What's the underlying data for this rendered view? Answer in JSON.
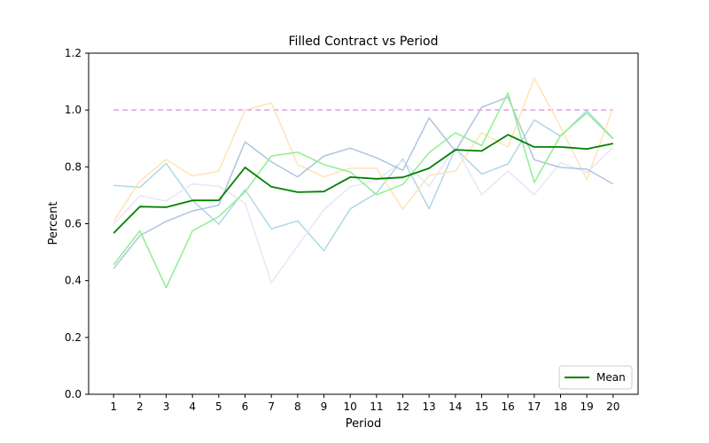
{
  "chart_data": {
    "type": "line",
    "title": "Filled Contract vs Period",
    "xlabel": "Period",
    "ylabel": "Percent",
    "x": [
      1,
      2,
      3,
      4,
      5,
      6,
      7,
      8,
      9,
      10,
      11,
      12,
      13,
      14,
      15,
      16,
      17,
      18,
      19,
      20
    ],
    "ylim": [
      0,
      1.2
    ],
    "yticks": [
      0.0,
      0.2,
      0.4,
      0.6,
      0.8,
      1.0,
      1.2
    ],
    "ytick_labels": [
      "0.0",
      "0.2",
      "0.4",
      "0.6",
      "0.8",
      "1.0",
      "1.2"
    ],
    "grid": false,
    "legend_position": "bottom-right",
    "reference_line": {
      "y": 1.0,
      "color": "#dda0dd",
      "style": "dashed"
    },
    "series": [
      {
        "color": "#add8e6",
        "values": [
          0.735,
          0.728,
          0.812,
          0.682,
          0.598,
          0.72,
          0.582,
          0.61,
          0.505,
          0.652,
          0.708,
          0.828,
          0.652,
          0.865,
          0.775,
          0.81,
          0.965,
          0.908,
          0.998,
          0.9
        ]
      },
      {
        "color": "#ffe4b5",
        "values": [
          0.608,
          0.75,
          0.826,
          0.768,
          0.785,
          1.0,
          1.025,
          0.808,
          0.765,
          0.795,
          0.795,
          0.652,
          0.77,
          0.785,
          0.92,
          0.87,
          1.112,
          0.94,
          0.755,
          1.008
        ]
      },
      {
        "color": "#e6e6fa",
        "values": [
          0.598,
          0.698,
          0.68,
          0.74,
          0.732,
          0.672,
          0.392,
          0.522,
          0.65,
          0.73,
          0.752,
          0.822,
          0.732,
          0.87,
          0.702,
          0.785,
          0.702,
          0.815,
          0.78,
          0.868
        ]
      },
      {
        "color": "#b0c4de",
        "values": [
          0.442,
          0.558,
          0.608,
          0.645,
          0.665,
          0.888,
          0.818,
          0.765,
          0.838,
          0.866,
          0.832,
          0.788,
          0.972,
          0.855,
          1.01,
          1.045,
          0.825,
          0.798,
          0.792,
          0.74
        ]
      },
      {
        "color": "#90ee90",
        "values": [
          0.455,
          0.575,
          0.375,
          0.575,
          0.625,
          0.712,
          0.838,
          0.852,
          0.808,
          0.782,
          0.702,
          0.738,
          0.85,
          0.92,
          0.875,
          1.06,
          0.745,
          0.91,
          0.99,
          0.898
        ]
      },
      {
        "name": "Mean",
        "color": "#008000",
        "values": [
          0.567,
          0.66,
          0.658,
          0.682,
          0.682,
          0.798,
          0.73,
          0.711,
          0.713,
          0.764,
          0.758,
          0.763,
          0.795,
          0.86,
          0.856,
          0.913,
          0.87,
          0.87,
          0.863,
          0.882
        ]
      }
    ]
  }
}
